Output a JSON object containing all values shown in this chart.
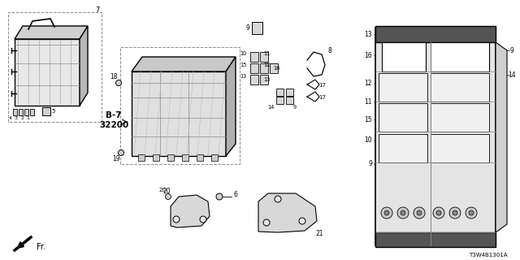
{
  "background_color": "#ffffff",
  "line_color": "#000000",
  "reference_code": "T3W4B1301A"
}
